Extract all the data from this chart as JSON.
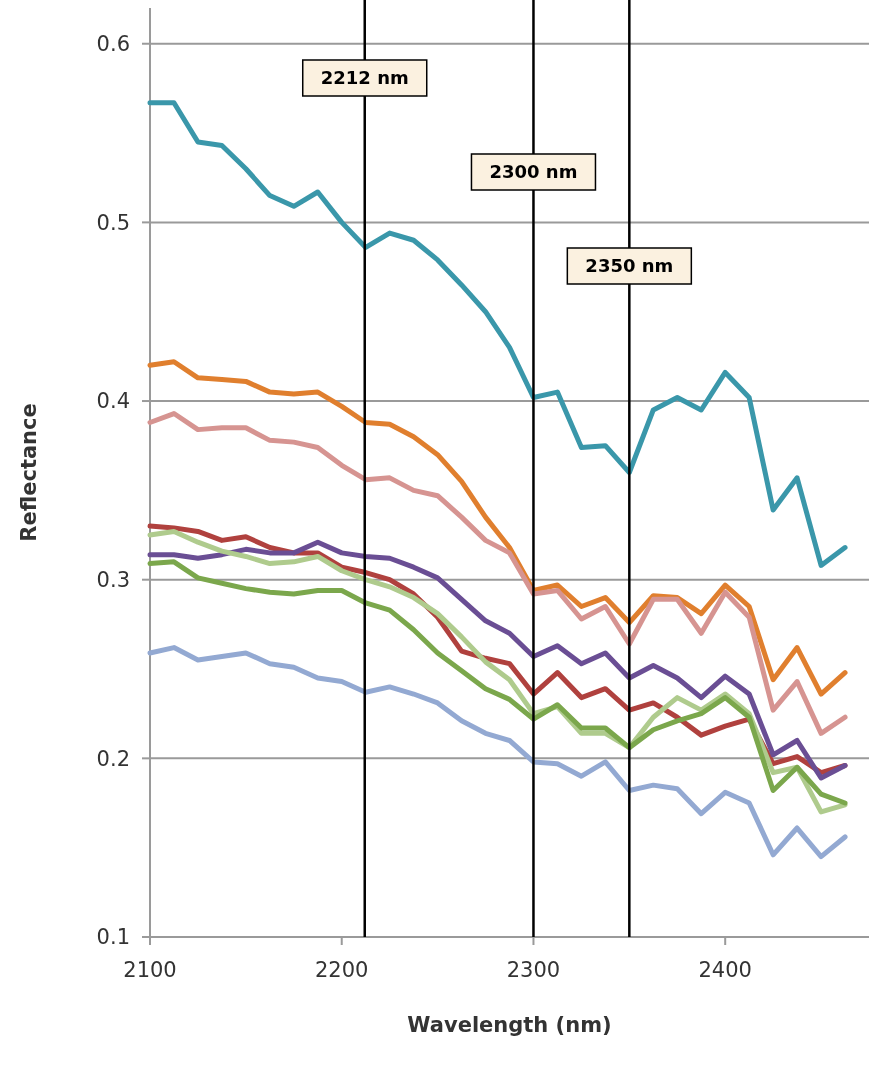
{
  "chart_data": {
    "type": "line",
    "xlabel": "Wavelength (nm)",
    "ylabel": "Reflectance",
    "x": [
      2100,
      2112.5,
      2125,
      2137.5,
      2150,
      2162.5,
      2175,
      2187.5,
      2200,
      2212.5,
      2225,
      2237.5,
      2250,
      2262.5,
      2275,
      2287.5,
      2300,
      2312.5,
      2325,
      2337.5,
      2350,
      2362.5,
      2375,
      2387.5,
      2400,
      2412.5,
      2425,
      2437.5,
      2450,
      2462.5
    ],
    "xlim": [
      2100,
      2475
    ],
    "xticks": [
      2100,
      2200,
      2300,
      2400
    ],
    "ylim": [
      0.1,
      0.62
    ],
    "yticks": [
      {
        "value": 0.1,
        "label": "0.1"
      },
      {
        "value": 0.2,
        "label": "0.2"
      },
      {
        "value": 0.3,
        "label": "0.3"
      },
      {
        "value": 0.4,
        "label": "0.4"
      },
      {
        "value": 0.5,
        "label": "0.5"
      },
      {
        "value": 0.6,
        "label": "0.6"
      }
    ],
    "grid": "y",
    "line_style": "solid",
    "marker": "none",
    "ref_lines": [
      {
        "axis": "x",
        "value": 2212,
        "label": "2212 nm",
        "color": "#000000"
      },
      {
        "axis": "x",
        "value": 2300,
        "label": "2300 nm",
        "color": "#000000"
      },
      {
        "axis": "x",
        "value": 2350,
        "label": "2350 nm",
        "color": "#000000"
      }
    ],
    "series": [
      {
        "color": "#3a97aa",
        "values": [
          0.567,
          0.567,
          0.545,
          0.543,
          0.53,
          0.515,
          0.509,
          0.517,
          0.5,
          0.486,
          0.494,
          0.49,
          0.479,
          0.465,
          0.45,
          0.43,
          0.402,
          0.405,
          0.374,
          0.375,
          0.36,
          0.395,
          0.402,
          0.395,
          0.416,
          0.402,
          0.339,
          0.357,
          0.308,
          0.318
        ]
      },
      {
        "color": "#e07f2e",
        "values": [
          0.42,
          0.422,
          0.413,
          0.412,
          0.411,
          0.405,
          0.404,
          0.405,
          0.397,
          0.388,
          0.387,
          0.38,
          0.37,
          0.355,
          0.335,
          0.318,
          0.294,
          0.297,
          0.285,
          0.29,
          0.276,
          0.291,
          0.29,
          0.281,
          0.297,
          0.285,
          0.244,
          0.262,
          0.236,
          0.248
        ]
      },
      {
        "color": "#d69491",
        "values": [
          0.388,
          0.393,
          0.384,
          0.385,
          0.385,
          0.378,
          0.377,
          0.374,
          0.364,
          0.356,
          0.357,
          0.35,
          0.347,
          0.335,
          0.322,
          0.315,
          0.292,
          0.294,
          0.278,
          0.285,
          0.264,
          0.289,
          0.289,
          0.27,
          0.293,
          0.279,
          0.227,
          0.243,
          0.214,
          0.223
        ]
      },
      {
        "color": "#b0413e",
        "values": [
          0.33,
          0.329,
          0.327,
          0.322,
          0.324,
          0.318,
          0.315,
          0.315,
          0.307,
          0.304,
          0.3,
          0.292,
          0.279,
          0.26,
          0.256,
          0.253,
          0.236,
          0.248,
          0.234,
          0.239,
          0.227,
          0.231,
          0.223,
          0.213,
          0.218,
          0.222,
          0.197,
          0.201,
          0.192,
          0.196
        ]
      },
      {
        "color": "#6a4e94",
        "values": [
          0.314,
          0.314,
          0.312,
          0.314,
          0.317,
          0.315,
          0.315,
          0.321,
          0.315,
          0.313,
          0.312,
          0.307,
          0.301,
          0.289,
          0.277,
          0.27,
          0.257,
          0.263,
          0.253,
          0.259,
          0.245,
          0.252,
          0.245,
          0.234,
          0.246,
          0.236,
          0.202,
          0.21,
          0.189,
          0.196
        ]
      },
      {
        "color": "#afcb8d",
        "values": [
          0.325,
          0.327,
          0.321,
          0.316,
          0.313,
          0.309,
          0.31,
          0.313,
          0.305,
          0.3,
          0.296,
          0.29,
          0.281,
          0.268,
          0.254,
          0.244,
          0.225,
          0.229,
          0.214,
          0.214,
          0.206,
          0.223,
          0.234,
          0.227,
          0.236,
          0.225,
          0.192,
          0.195,
          0.17,
          0.174
        ]
      },
      {
        "color": "#7ba74c",
        "values": [
          0.309,
          0.31,
          0.301,
          0.298,
          0.295,
          0.293,
          0.292,
          0.294,
          0.294,
          0.287,
          0.283,
          0.272,
          0.259,
          0.249,
          0.239,
          0.233,
          0.222,
          0.23,
          0.217,
          0.217,
          0.206,
          0.216,
          0.221,
          0.225,
          0.234,
          0.223,
          0.182,
          0.195,
          0.18,
          0.175
        ]
      },
      {
        "color": "#93a9d2",
        "values": [
          0.259,
          0.262,
          0.255,
          0.257,
          0.259,
          0.253,
          0.251,
          0.245,
          0.243,
          0.237,
          0.24,
          0.236,
          0.231,
          0.221,
          0.214,
          0.21,
          0.198,
          0.197,
          0.19,
          0.198,
          0.182,
          0.185,
          0.183,
          0.169,
          0.181,
          0.175,
          0.146,
          0.161,
          0.145,
          0.156
        ]
      }
    ]
  }
}
